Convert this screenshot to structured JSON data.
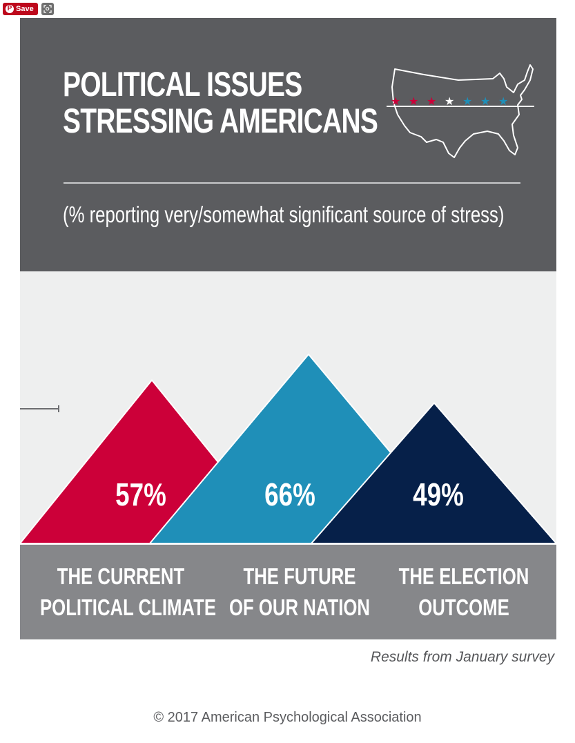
{
  "overlay": {
    "save_label": "Save",
    "save_icon": "pinterest-icon",
    "lens_icon": "visual-search-icon"
  },
  "header": {
    "title_line1": "POLITICAL ISSUES",
    "title_line2": "STRESSING AMERICANS",
    "subtitle": "(% reporting very/somewhat significant source of stress)",
    "map_icon": "us-map-stars-icon"
  },
  "colors": {
    "header_bg": "#5b5c5f",
    "chart_bg": "#eeefef",
    "label_bg": "#86878a",
    "red": "#cc0039",
    "blue": "#1f8fb8",
    "navy": "#062049"
  },
  "chart_data": {
    "type": "bar",
    "style": "triangle",
    "categories": [
      [
        "THE CURRENT",
        "POLITICAL CLIMATE"
      ],
      [
        "THE FUTURE",
        "OF OUR NATION"
      ],
      [
        "THE ELECTION",
        "OUTCOME"
      ]
    ],
    "values": [
      57,
      66,
      49
    ],
    "value_labels": [
      "57%",
      "66%",
      "49%"
    ],
    "colors": [
      "#cc0039",
      "#1f8fb8",
      "#062049"
    ],
    "ylim": [
      0,
      100
    ]
  },
  "footer": {
    "source": "Results from January survey",
    "copyright": "© 2017 American Psychological Association"
  }
}
